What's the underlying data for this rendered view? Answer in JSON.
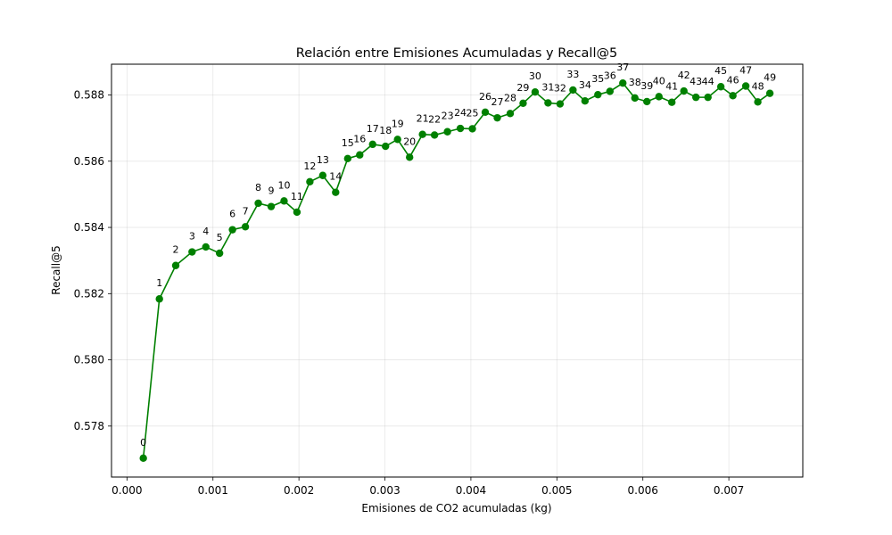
{
  "chart_data": {
    "type": "line",
    "title": "Relación entre Emisiones Acumuladas y Recall@5",
    "xlabel": "Emisiones de CO2 acumuladas (kg)",
    "ylabel": "Recall@5",
    "xlim": [
      -0.00018,
      0.00786
    ],
    "ylim": [
      0.57646,
      0.58893
    ],
    "xticks": [
      0.0,
      0.001,
      0.002,
      0.003,
      0.004,
      0.005,
      0.006,
      0.007
    ],
    "xtick_labels": [
      "0.000",
      "0.001",
      "0.002",
      "0.003",
      "0.004",
      "0.005",
      "0.006",
      "0.007"
    ],
    "yticks": [
      0.578,
      0.58,
      0.582,
      0.584,
      0.586,
      0.588
    ],
    "ytick_labels": [
      "0.578",
      "0.580",
      "0.582",
      "0.584",
      "0.586",
      "0.588"
    ],
    "grid": true,
    "color": "#008000",
    "marker": "circle",
    "point_labels": [
      "0",
      "1",
      "2",
      "3",
      "4",
      "5",
      "6",
      "7",
      "8",
      "9",
      "10",
      "11",
      "12",
      "13",
      "14",
      "15",
      "16",
      "17",
      "18",
      "19",
      "20",
      "21",
      "22",
      "23",
      "24",
      "25",
      "26",
      "27",
      "28",
      "29",
      "30",
      "31",
      "32",
      "33",
      "34",
      "35",
      "36",
      "37",
      "38",
      "39",
      "40",
      "41",
      "42",
      "43",
      "44",
      "45",
      "46",
      "47",
      "48",
      "49"
    ],
    "x": [
      0.00019,
      0.000377,
      0.000567,
      0.000757,
      0.000917,
      0.001077,
      0.001227,
      0.001377,
      0.001527,
      0.001677,
      0.001827,
      0.001977,
      0.002127,
      0.002277,
      0.002427,
      0.002567,
      0.002707,
      0.002857,
      0.003007,
      0.003147,
      0.003287,
      0.003437,
      0.003577,
      0.003727,
      0.003877,
      0.004017,
      0.004167,
      0.004307,
      0.004457,
      0.004607,
      0.004747,
      0.004897,
      0.005037,
      0.005187,
      0.005327,
      0.005477,
      0.005617,
      0.005767,
      0.005907,
      0.006047,
      0.006187,
      0.006337,
      0.006477,
      0.006617,
      0.006757,
      0.006907,
      0.007047,
      0.007197,
      0.007337,
      0.007477
    ],
    "y": [
      0.57703,
      0.58184,
      0.58285,
      0.58326,
      0.58341,
      0.58322,
      0.58393,
      0.58402,
      0.58473,
      0.58463,
      0.5848,
      0.58446,
      0.58538,
      0.58557,
      0.58506,
      0.58608,
      0.58619,
      0.58651,
      0.58645,
      0.58666,
      0.58612,
      0.58681,
      0.58679,
      0.58689,
      0.58699,
      0.58698,
      0.58748,
      0.58731,
      0.58744,
      0.58775,
      0.58809,
      0.58776,
      0.58773,
      0.58815,
      0.58782,
      0.58801,
      0.58811,
      0.58836,
      0.58791,
      0.5878,
      0.58795,
      0.58778,
      0.58812,
      0.58793,
      0.58793,
      0.58825,
      0.58798,
      0.58827,
      0.58779,
      0.58805
    ]
  }
}
